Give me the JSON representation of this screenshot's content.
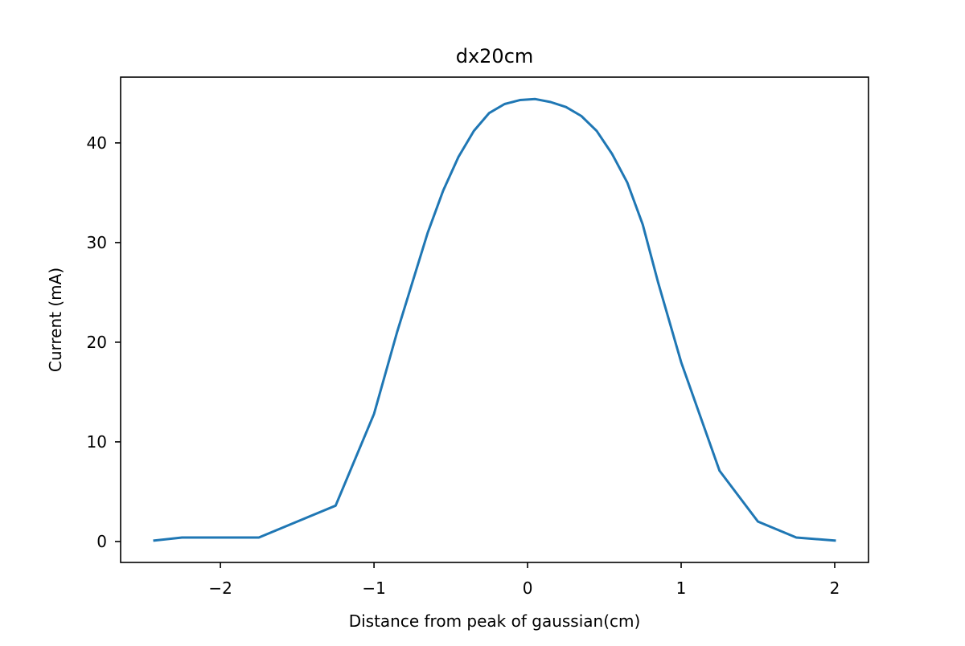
{
  "chart_data": {
    "type": "line",
    "title": "dx20cm",
    "xlabel": "Distance from peak of gaussian(cm)",
    "ylabel": "Current (mA)",
    "xlim": [
      -2.65,
      2.22
    ],
    "ylim": [
      -2.1,
      46.6
    ],
    "grid": false,
    "xticks": [
      {
        "value": -2,
        "label": "−2"
      },
      {
        "value": -1,
        "label": "−1"
      },
      {
        "value": 0,
        "label": "0"
      },
      {
        "value": 1,
        "label": "1"
      },
      {
        "value": 2,
        "label": "2"
      }
    ],
    "yticks": [
      {
        "value": 0,
        "label": "0"
      },
      {
        "value": 10,
        "label": "10"
      },
      {
        "value": 20,
        "label": "20"
      },
      {
        "value": 30,
        "label": "30"
      },
      {
        "value": 40,
        "label": "40"
      }
    ],
    "series": [
      {
        "color": "#1f77b4",
        "x": [
          -2.43,
          -2.25,
          -2.0,
          -1.75,
          -1.5,
          -1.25,
          -1.0,
          -0.85,
          -0.75,
          -0.65,
          -0.55,
          -0.45,
          -0.35,
          -0.25,
          -0.15,
          -0.05,
          0.05,
          0.15,
          0.25,
          0.35,
          0.45,
          0.55,
          0.65,
          0.75,
          0.85,
          1.0,
          1.25,
          1.5,
          1.75,
          2.0
        ],
        "y": [
          0.1,
          0.4,
          0.4,
          0.4,
          2.0,
          3.6,
          12.8,
          21.0,
          26.0,
          31.0,
          35.2,
          38.6,
          41.2,
          43.0,
          43.9,
          44.3,
          44.4,
          44.1,
          43.6,
          42.7,
          41.2,
          38.9,
          36.0,
          31.8,
          26.0,
          18.0,
          7.1,
          2.0,
          0.4,
          0.1
        ]
      }
    ]
  }
}
